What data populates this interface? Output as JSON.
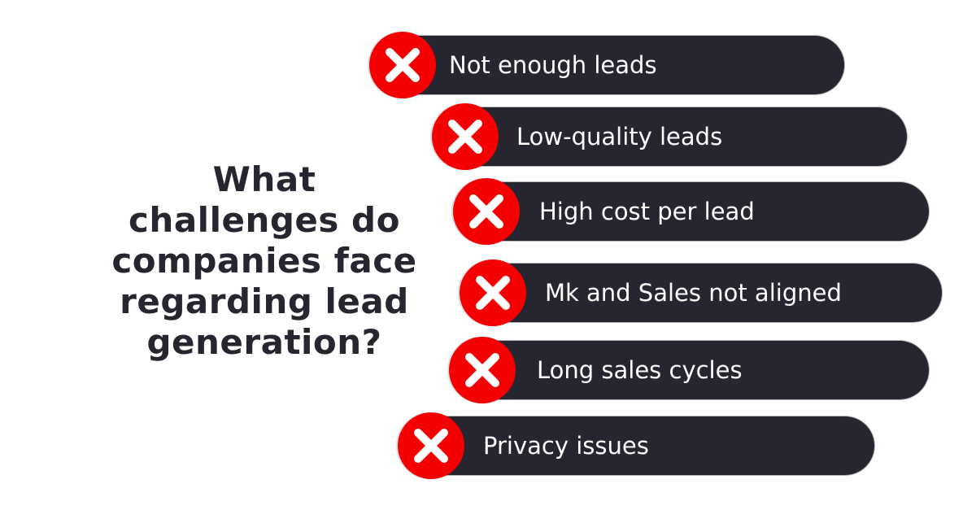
{
  "title": [
    "What",
    "challenges do",
    "companies face",
    "regarding lead",
    "generation?"
  ],
  "colors": {
    "bar": "#262630",
    "icon_bg": "#f50000",
    "icon_fg": "#ffffff",
    "title": "#262630"
  },
  "items": [
    {
      "label": "Not enough leads",
      "icon": "x-mark-icon"
    },
    {
      "label": "Low-quality leads",
      "icon": "x-mark-icon"
    },
    {
      "label": "High cost per lead",
      "icon": "x-mark-icon"
    },
    {
      "label": "Mk and Sales not aligned",
      "icon": "x-mark-icon"
    },
    {
      "label": "Long sales cycles",
      "icon": "x-mark-icon"
    },
    {
      "label": "Privacy issues",
      "icon": "x-mark-icon"
    }
  ]
}
